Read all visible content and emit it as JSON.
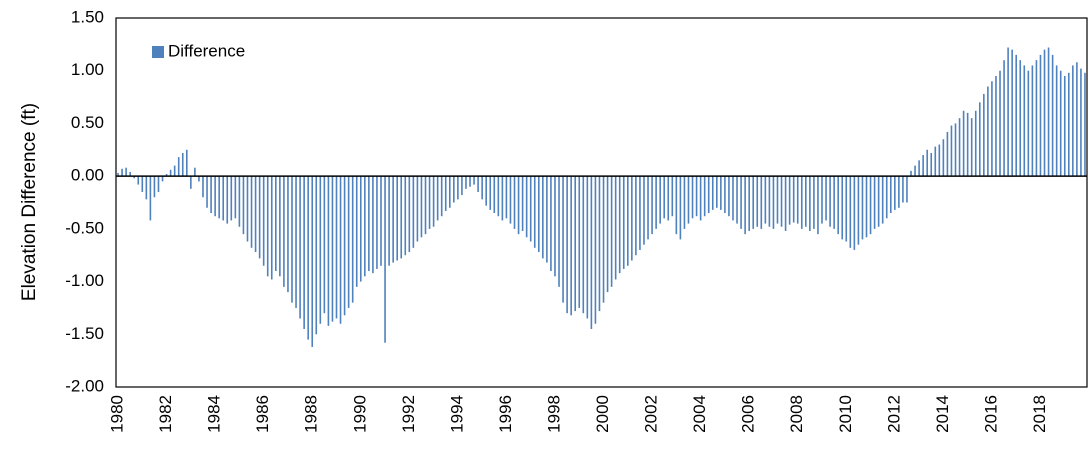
{
  "chart_data": {
    "type": "bar",
    "y_label": "Elevation Difference (ft)",
    "categories": [
      "1980",
      null,
      null,
      null,
      null,
      null,
      null,
      null,
      null,
      null,
      null,
      null,
      "1982",
      null,
      null,
      null,
      null,
      null,
      null,
      null,
      null,
      null,
      null,
      null,
      "1984",
      null,
      null,
      null,
      null,
      null,
      null,
      null,
      null,
      null,
      null,
      null,
      "1986",
      null,
      null,
      null,
      null,
      null,
      null,
      null,
      null,
      null,
      null,
      null,
      "1988",
      null,
      null,
      null,
      null,
      null,
      null,
      null,
      null,
      null,
      null,
      null,
      "1990",
      null,
      null,
      null,
      null,
      null,
      null,
      null,
      null,
      null,
      null,
      null,
      "1992",
      null,
      null,
      null,
      null,
      null,
      null,
      null,
      null,
      null,
      null,
      null,
      "1994",
      null,
      null,
      null,
      null,
      null,
      null,
      null,
      null,
      null,
      null,
      null,
      "1996",
      null,
      null,
      null,
      null,
      null,
      null,
      null,
      null,
      null,
      null,
      null,
      "1998",
      null,
      null,
      null,
      null,
      null,
      null,
      null,
      null,
      null,
      null,
      null,
      "2000",
      null,
      null,
      null,
      null,
      null,
      null,
      null,
      null,
      null,
      null,
      null,
      "2002",
      null,
      null,
      null,
      null,
      null,
      null,
      null,
      null,
      null,
      null,
      null,
      "2004",
      null,
      null,
      null,
      null,
      null,
      null,
      null,
      null,
      null,
      null,
      null,
      "2006",
      null,
      null,
      null,
      null,
      null,
      null,
      null,
      null,
      null,
      null,
      null,
      "2008",
      null,
      null,
      null,
      null,
      null,
      null,
      null,
      null,
      null,
      null,
      null,
      "2010",
      null,
      null,
      null,
      null,
      null,
      null,
      null,
      null,
      null,
      null,
      null,
      "2012",
      null,
      null,
      null,
      null,
      null,
      null,
      null,
      null,
      null,
      null,
      null,
      "2014",
      null,
      null,
      null,
      null,
      null,
      null,
      null,
      null,
      null,
      null,
      null,
      "2016",
      null,
      null,
      null,
      null,
      null,
      null,
      null,
      null,
      null,
      null,
      null,
      "2018",
      null,
      null,
      null,
      null,
      null,
      null,
      null,
      null,
      null,
      null,
      null
    ],
    "series": [
      {
        "name": "Difference",
        "color": "#4f81bd",
        "values": [
          0.03,
          0.07,
          0.08,
          0.04,
          -0.02,
          -0.08,
          -0.15,
          -0.22,
          -0.42,
          -0.2,
          -0.15,
          -0.05,
          0.02,
          0.06,
          0.1,
          0.18,
          0.22,
          0.25,
          -0.12,
          0.08,
          -0.05,
          -0.2,
          -0.3,
          -0.35,
          -0.38,
          -0.4,
          -0.42,
          -0.45,
          -0.42,
          -0.4,
          -0.48,
          -0.55,
          -0.62,
          -0.68,
          -0.72,
          -0.78,
          -0.85,
          -0.95,
          -0.98,
          -0.9,
          -0.95,
          -1.05,
          -1.1,
          -1.2,
          -1.25,
          -1.35,
          -1.45,
          -1.55,
          -1.62,
          -1.5,
          -1.4,
          -1.3,
          -1.42,
          -1.38,
          -1.35,
          -1.4,
          -1.32,
          -1.25,
          -1.2,
          -1.05,
          -1.0,
          -0.95,
          -0.9,
          -0.92,
          -0.88,
          -0.85,
          -1.58,
          -0.85,
          -0.82,
          -0.8,
          -0.78,
          -0.75,
          -0.72,
          -0.68,
          -0.62,
          -0.58,
          -0.55,
          -0.5,
          -0.48,
          -0.42,
          -0.38,
          -0.33,
          -0.3,
          -0.25,
          -0.22,
          -0.18,
          -0.12,
          -0.1,
          -0.08,
          -0.15,
          -0.22,
          -0.28,
          -0.32,
          -0.35,
          -0.38,
          -0.42,
          -0.4,
          -0.45,
          -0.5,
          -0.55,
          -0.52,
          -0.58,
          -0.62,
          -0.68,
          -0.72,
          -0.78,
          -0.82,
          -0.9,
          -0.95,
          -1.05,
          -1.2,
          -1.3,
          -1.32,
          -1.28,
          -1.25,
          -1.3,
          -1.35,
          -1.45,
          -1.4,
          -1.28,
          -1.2,
          -1.1,
          -1.05,
          -0.98,
          -0.92,
          -0.88,
          -0.85,
          -0.8,
          -0.75,
          -0.7,
          -0.65,
          -0.6,
          -0.55,
          -0.5,
          -0.45,
          -0.4,
          -0.42,
          -0.38,
          -0.55,
          -0.6,
          -0.5,
          -0.45,
          -0.4,
          -0.38,
          -0.42,
          -0.38,
          -0.35,
          -0.32,
          -0.3,
          -0.32,
          -0.35,
          -0.38,
          -0.42,
          -0.45,
          -0.5,
          -0.55,
          -0.52,
          -0.5,
          -0.48,
          -0.5,
          -0.45,
          -0.48,
          -0.5,
          -0.45,
          -0.48,
          -0.52,
          -0.46,
          -0.44,
          -0.45,
          -0.5,
          -0.48,
          -0.52,
          -0.5,
          -0.55,
          -0.45,
          -0.42,
          -0.48,
          -0.5,
          -0.55,
          -0.6,
          -0.62,
          -0.68,
          -0.7,
          -0.65,
          -0.6,
          -0.58,
          -0.55,
          -0.5,
          -0.48,
          -0.45,
          -0.4,
          -0.35,
          -0.32,
          -0.3,
          -0.25,
          -0.25,
          0.05,
          0.1,
          0.15,
          0.2,
          0.25,
          0.22,
          0.28,
          0.3,
          0.35,
          0.42,
          0.48,
          0.5,
          0.55,
          0.62,
          0.6,
          0.55,
          0.62,
          0.7,
          0.78,
          0.85,
          0.9,
          0.95,
          1.0,
          1.1,
          1.22,
          1.2,
          1.15,
          1.1,
          1.05,
          1.0,
          1.05,
          1.1,
          1.15,
          1.2,
          1.22,
          1.15,
          1.05,
          1.0,
          0.95,
          0.98,
          1.05,
          1.08,
          1.02,
          0.98
        ]
      }
    ],
    "ylim": [
      -2,
      1.5
    ],
    "yticks": [
      {
        "value": -2,
        "label": "-2.00"
      },
      {
        "value": -1.5,
        "label": "-1.50"
      },
      {
        "value": -1,
        "label": "-1.00"
      },
      {
        "value": -0.5,
        "label": "-0.50"
      },
      {
        "value": 0,
        "label": "0.00"
      },
      {
        "value": 0.5,
        "label": "0.50"
      },
      {
        "value": 1,
        "label": "1.00"
      },
      {
        "value": 1.5,
        "label": "1.50"
      }
    ],
    "grid": false,
    "legend": "top-left"
  }
}
